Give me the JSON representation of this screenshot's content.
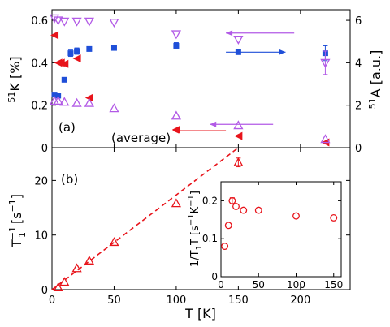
{
  "colors": {
    "blue": "#1f4fd8",
    "red": "#e8141b",
    "violet": "#b25ae6",
    "frame": "#000000"
  },
  "chart_data": [
    {
      "type": "scatter",
      "panel_label": "(a)",
      "annotation": "(average)",
      "xlim": [
        0,
        240
      ],
      "ylabel_left_main": "K [%]",
      "ylabel_left_sup": "51",
      "ylabel_right_main": "A [a.u.]",
      "ylabel_right_sup": "51",
      "ylim_left": [
        0,
        0.65
      ],
      "ylim_right": [
        0,
        6.5
      ],
      "yticks_left": [
        "0",
        "0.2",
        "0.4",
        "0.6"
      ],
      "yticks_right": [
        "0",
        "2",
        "4",
        "6"
      ],
      "series": [
        {
          "marker": "square",
          "color": "blue",
          "axis": "left",
          "x": [
            2,
            5,
            10,
            15,
            20,
            30,
            50,
            100,
            150,
            220
          ],
          "y": [
            0.25,
            0.245,
            0.32,
            0.445,
            0.455,
            0.465,
            0.47,
            0.48,
            0.45,
            0.445
          ],
          "err": [
            0,
            0,
            0,
            0.015,
            0.015,
            0,
            0,
            0.015,
            0,
            0.035
          ]
        },
        {
          "marker": "triangle-left",
          "color": "red",
          "axis": "left",
          "x": [
            2,
            5,
            7,
            10,
            20,
            30,
            100,
            150,
            220
          ],
          "y": [
            0.53,
            0.4,
            0.4,
            0.395,
            0.42,
            0.235,
            0.085,
            0.055,
            0.025
          ]
        },
        {
          "marker": "triangle-down",
          "color": "violet",
          "axis": "right",
          "x": [
            2,
            5,
            10,
            20,
            30,
            50,
            100,
            150,
            220
          ],
          "y": [
            6.1,
            6.0,
            5.95,
            5.95,
            5.95,
            5.9,
            5.35,
            5.1,
            4.0
          ],
          "err": [
            0,
            0,
            0,
            0,
            0,
            0,
            0,
            0,
            0.55
          ]
        },
        {
          "marker": "triangle-up",
          "color": "violet",
          "axis": "right",
          "x": [
            2,
            5,
            10,
            20,
            30,
            50,
            100,
            150,
            220
          ],
          "y": [
            2.2,
            2.2,
            2.15,
            2.1,
            2.1,
            1.85,
            1.5,
            1.05,
            0.4
          ]
        }
      ],
      "arrows": [
        {
          "from_x": 195,
          "to_x": 140,
          "y": 0.54,
          "color": "violet",
          "axis": "left"
        },
        {
          "from_x": 140,
          "to_x": 188,
          "y": 0.45,
          "color": "blue",
          "axis": "left"
        },
        {
          "from_x": 140,
          "to_x": 97,
          "y": 0.08,
          "color": "red",
          "axis": "left"
        },
        {
          "from_x": 178,
          "to_x": 127,
          "y": 0.11,
          "color": "violet",
          "axis": "left"
        }
      ]
    },
    {
      "type": "scatter",
      "panel_label": "(b)",
      "xlabel": "T  [K]",
      "xlim": [
        0,
        240
      ],
      "xticks": [
        "0",
        "50",
        "100",
        "150",
        "200"
      ],
      "ylim": [
        0,
        26
      ],
      "yticks": [
        "0",
        "10",
        "20"
      ],
      "ylabel_main": "T",
      "ylabel_sub": "1",
      "ylabel_sup": "−1",
      "ylabel_unit": "[s",
      "ylabel_unit_sup": "−1",
      "ylabel_close": "]",
      "series": [
        {
          "marker": "triangle-up",
          "color": "red",
          "x": [
            5,
            10,
            20,
            30,
            50,
            100,
            150
          ],
          "y": [
            0.4,
            1.4,
            3.9,
            5.3,
            8.7,
            15.8,
            23.3
          ],
          "err": [
            0,
            0,
            0,
            0,
            0,
            0,
            0.8
          ]
        }
      ],
      "fit_line": {
        "x": [
          0,
          150
        ],
        "y": [
          0,
          26
        ],
        "color": "red",
        "style": "dashed"
      },
      "inset": {
        "type": "scatter",
        "xlim": [
          0,
          160
        ],
        "ylim": [
          0,
          0.25
        ],
        "xticks": [
          "0",
          "50",
          "100",
          "150"
        ],
        "yticks": [
          "0",
          "0.1",
          "0.2"
        ],
        "ylabel_a": "1/T",
        "ylabel_sub": "1",
        "ylabel_b": "T  [s",
        "ylabel_sup": "−1",
        "ylabel_c": "K",
        "ylabel_sup2": "−1",
        "ylabel_d": "]",
        "series": [
          {
            "marker": "circle",
            "color": "red",
            "x": [
              5,
              10,
              15,
              20,
              30,
              50,
              100,
              150
            ],
            "y": [
              0.08,
              0.135,
              0.2,
              0.185,
              0.175,
              0.175,
              0.16,
              0.155
            ],
            "err": [
              0,
              0,
              0.008,
              0,
              0,
              0,
              0,
              0
            ]
          }
        ]
      }
    }
  ]
}
